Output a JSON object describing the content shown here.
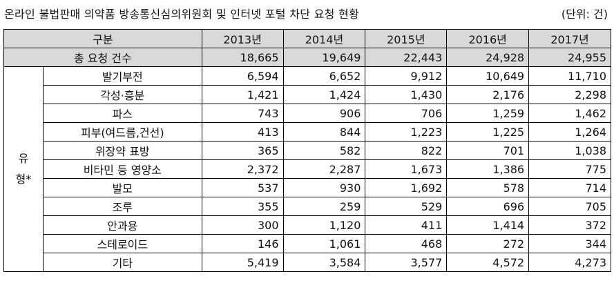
{
  "title": "온라인 불법판매 의약품 방송통신심의위원회 및 인터넷 포털 차단 요청 현황",
  "unit": "(단위: 건)",
  "table": {
    "header": [
      "구분",
      "2013년",
      "2014년",
      "2015년",
      "2016년",
      "2017년"
    ],
    "total": {
      "label": "총 요청 건수",
      "values": [
        "18,665",
        "19,649",
        "22,443",
        "24,928",
        "24,955"
      ]
    },
    "group_label": [
      "유",
      "형*"
    ],
    "rows": [
      {
        "label": "발기부전",
        "values": [
          "6,594",
          "6,652",
          "9,912",
          "10,649",
          "11,710"
        ]
      },
      {
        "label": "각성·흥분",
        "values": [
          "1,421",
          "1,424",
          "1,430",
          "2,176",
          "2,298"
        ]
      },
      {
        "label": "파스",
        "values": [
          "743",
          "906",
          "706",
          "1,259",
          "1,462"
        ]
      },
      {
        "label": "피부(여드름,건선)",
        "values": [
          "413",
          "844",
          "1,223",
          "1,225",
          "1,264"
        ]
      },
      {
        "label": "위장약 표방",
        "values": [
          "365",
          "582",
          "822",
          "701",
          "1,038"
        ]
      },
      {
        "label": "비타민 등 영양소",
        "values": [
          "2,372",
          "2,287",
          "1,673",
          "1,386",
          "775"
        ]
      },
      {
        "label": "발모",
        "values": [
          "537",
          "930",
          "1,692",
          "578",
          "714"
        ]
      },
      {
        "label": "조루",
        "values": [
          "355",
          "259",
          "529",
          "696",
          "705"
        ]
      },
      {
        "label": "안과용",
        "values": [
          "300",
          "1,120",
          "411",
          "1,414",
          "372"
        ]
      },
      {
        "label": "스테로이드",
        "values": [
          "146",
          "1,061",
          "468",
          "272",
          "344"
        ]
      },
      {
        "label": "기타",
        "values": [
          "5,419",
          "3,584",
          "3,577",
          "4,572",
          "4,273"
        ]
      }
    ]
  }
}
